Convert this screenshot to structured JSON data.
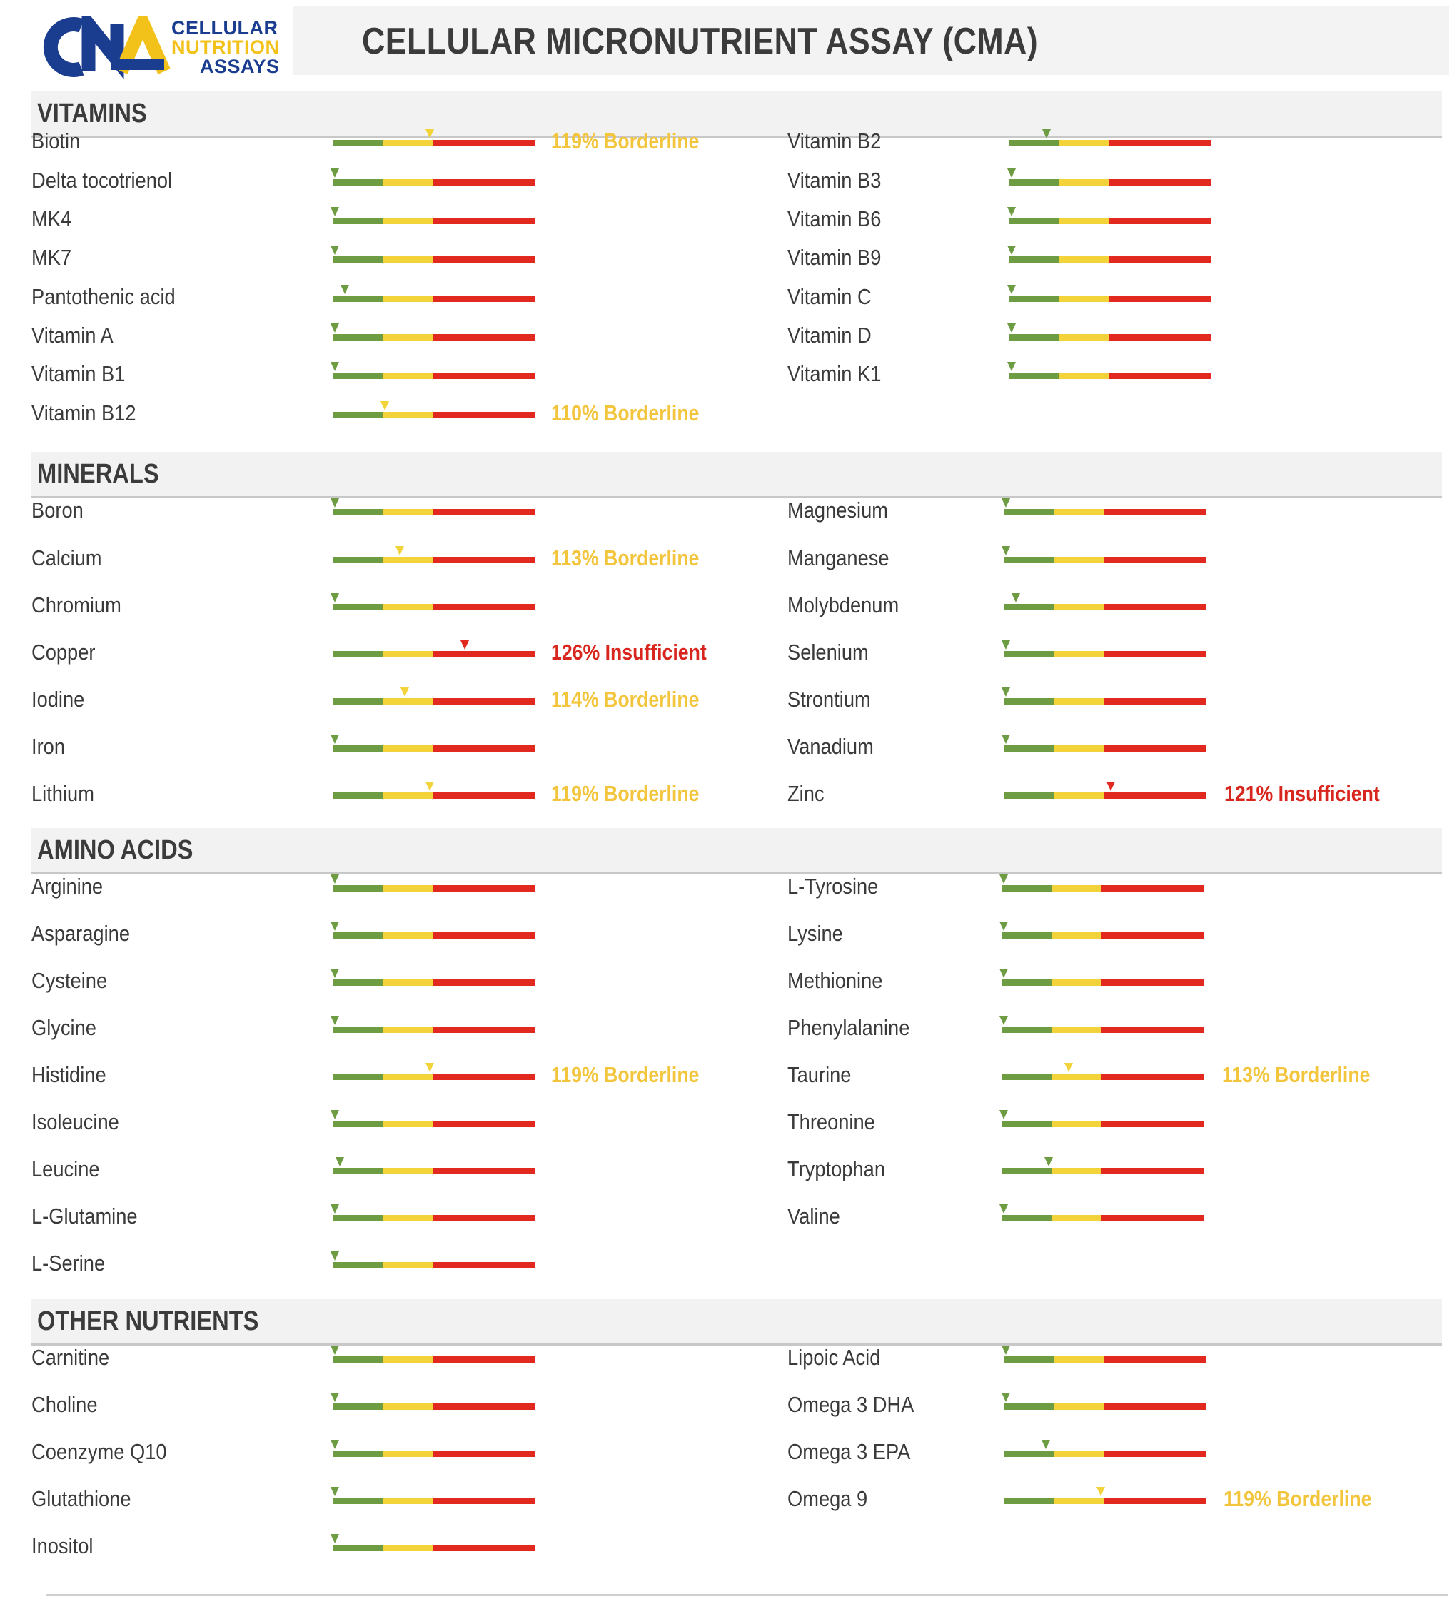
{
  "logo": {
    "line1": "CELLULAR",
    "line2": "NUTRITION",
    "line3": "ASSAYS",
    "colors": {
      "blue": "#1a3d8f",
      "yellow": "#f2c21b"
    }
  },
  "title": "CELLULAR MICRONUTRIENT ASSAY (CMA)",
  "colors": {
    "green": "#6e9c43",
    "yellow": "#f2d43a",
    "red": "#e1291f",
    "borderline_text": "#f2c53d",
    "insufficient_text": "#d8261e"
  },
  "scale_note": "marker position = level relative to reference: 0 = optimal start, 1 = end of green, 2 = end of yellow, 4 = end of red",
  "sections": [
    {
      "title": "VITAMINS",
      "left": [
        {
          "name": "Biotin",
          "level": 1.9,
          "status": "119% Borderline",
          "status_type": "borderline"
        },
        {
          "name": "Delta tocotrienol",
          "level": 0.0
        },
        {
          "name": "MK4",
          "level": 0.0
        },
        {
          "name": "MK7",
          "level": 0.0
        },
        {
          "name": "Pantothenic acid",
          "level": 0.2
        },
        {
          "name": "Vitamin A",
          "level": 0.0
        },
        {
          "name": "Vitamin B1",
          "level": 0.0
        },
        {
          "name": "Vitamin B12",
          "level": 1.0,
          "status": "110% Borderline",
          "status_type": "borderline"
        }
      ],
      "right": [
        {
          "name": "Vitamin B2",
          "level": 0.7
        },
        {
          "name": "Vitamin B3",
          "level": 0.0
        },
        {
          "name": "Vitamin B6",
          "level": 0.0
        },
        {
          "name": "Vitamin B9",
          "level": 0.0
        },
        {
          "name": "Vitamin C",
          "level": 0.0
        },
        {
          "name": "Vitamin D",
          "level": 0.0
        },
        {
          "name": "Vitamin K1",
          "level": 0.0
        }
      ]
    },
    {
      "title": "MINERALS",
      "left": [
        {
          "name": "Boron",
          "level": 0.0
        },
        {
          "name": "Calcium",
          "level": 1.3,
          "status": "113% Borderline",
          "status_type": "borderline"
        },
        {
          "name": "Chromium",
          "level": 0.0
        },
        {
          "name": "Copper",
          "level": 2.6,
          "status": "126% Insufficient",
          "status_type": "insufficient"
        },
        {
          "name": "Iodine",
          "level": 1.4,
          "status": "114% Borderline",
          "status_type": "borderline"
        },
        {
          "name": "Iron",
          "level": 0.0
        },
        {
          "name": "Lithium",
          "level": 1.9,
          "status": "119% Borderline",
          "status_type": "borderline"
        }
      ],
      "right": [
        {
          "name": "Magnesium",
          "level": 0.0
        },
        {
          "name": "Manganese",
          "level": 0.0
        },
        {
          "name": "Molybdenum",
          "level": 0.2
        },
        {
          "name": "Selenium",
          "level": 0.0
        },
        {
          "name": "Strontium",
          "level": 0.0
        },
        {
          "name": "Vanadium",
          "level": 0.0
        },
        {
          "name": "Zinc",
          "level": 2.1,
          "status": "121% Insufficient",
          "status_type": "insufficient"
        }
      ]
    },
    {
      "title": "AMINO ACIDS",
      "left": [
        {
          "name": "Arginine",
          "level": 0.0
        },
        {
          "name": "Asparagine",
          "level": 0.0
        },
        {
          "name": "Cysteine",
          "level": 0.0
        },
        {
          "name": "Glycine",
          "level": 0.0
        },
        {
          "name": "Histidine",
          "level": 1.9,
          "status": "119% Borderline",
          "status_type": "borderline"
        },
        {
          "name": "Isoleucine",
          "level": 0.0
        },
        {
          "name": "Leucine",
          "level": 0.1
        },
        {
          "name": "L-Glutamine",
          "level": 0.0
        },
        {
          "name": "L-Serine",
          "level": 0.0
        }
      ],
      "right": [
        {
          "name": "L-Tyrosine",
          "level": 0.0
        },
        {
          "name": "Lysine",
          "level": 0.0
        },
        {
          "name": "Methionine",
          "level": 0.0
        },
        {
          "name": "Phenylalanine",
          "level": 0.0
        },
        {
          "name": "Taurine",
          "level": 1.3,
          "status": "113% Borderline",
          "status_type": "borderline"
        },
        {
          "name": "Threonine",
          "level": 0.0
        },
        {
          "name": "Tryptophan",
          "level": 0.9
        },
        {
          "name": "Valine",
          "level": 0.0
        }
      ]
    },
    {
      "title": "OTHER NUTRIENTS",
      "left": [
        {
          "name": "Carnitine",
          "level": 0.0
        },
        {
          "name": "Choline",
          "level": 0.0
        },
        {
          "name": "Coenzyme Q10",
          "level": 0.0
        },
        {
          "name": "Glutathione",
          "level": 0.0
        },
        {
          "name": "Inositol",
          "level": 0.0
        }
      ],
      "right": [
        {
          "name": "Lipoic Acid",
          "level": 0.0
        },
        {
          "name": "Omega 3 DHA",
          "level": 0.0
        },
        {
          "name": "Omega 3 EPA",
          "level": 0.8
        },
        {
          "name": "Omega 9",
          "level": 1.9,
          "status": "119% Borderline",
          "status_type": "borderline"
        }
      ]
    }
  ]
}
